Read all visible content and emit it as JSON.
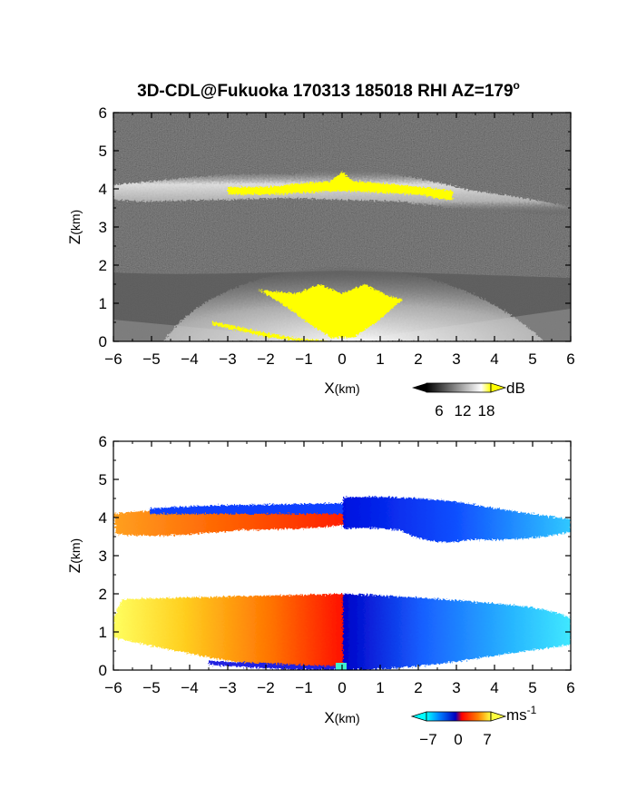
{
  "figure": {
    "title": "3D-CDL@Fukuoka 170313 185018 RHI AZ=179",
    "title_superscript": "o"
  },
  "chart_data": [
    {
      "type": "heatmap",
      "name": "backscatter",
      "xlabel_main": "X",
      "xlabel_unit": "(km)",
      "ylabel_main": "Z",
      "ylabel_unit": "(km)",
      "xlim": [
        -6,
        6
      ],
      "ylim": [
        0,
        6
      ],
      "x_ticks": [
        -6,
        -5,
        -4,
        -3,
        -2,
        -1,
        0,
        1,
        2,
        3,
        4,
        5,
        6
      ],
      "y_ticks": [
        0,
        1,
        2,
        3,
        4,
        5,
        6
      ],
      "colorscale": "grayscale",
      "colorbar": {
        "unit": "dB",
        "ticks": [
          "6",
          "12",
          "18"
        ],
        "colors": [
          "#000000",
          "#ffffff",
          "#ffff00"
        ],
        "extend": "both"
      },
      "layers": [
        {
          "feature": "cloud layer",
          "z_km": [
            3.6,
            4.4
          ],
          "x_km": [
            -6,
            6
          ]
        },
        {
          "feature": "saturated echo (>=18 dB)",
          "z_km": [
            3.6,
            4.5
          ],
          "x_km": [
            -3,
            3
          ]
        },
        {
          "feature": "boundary-layer scattering",
          "z_km": [
            0,
            1.8
          ],
          "x_km": [
            -6,
            6
          ]
        },
        {
          "feature": "saturated near-range echo",
          "z_km": [
            0,
            1.4
          ],
          "x_km": [
            -2.2,
            1.6
          ]
        }
      ]
    },
    {
      "type": "heatmap",
      "name": "doppler_velocity",
      "xlabel_main": "X",
      "xlabel_unit": "(km)",
      "ylabel_main": "Z",
      "ylabel_unit": "(km)",
      "xlim": [
        -6,
        6
      ],
      "ylim": [
        0,
        6
      ],
      "x_ticks": [
        -6,
        -5,
        -4,
        -3,
        -2,
        -1,
        0,
        1,
        2,
        3,
        4,
        5,
        6
      ],
      "y_ticks": [
        0,
        1,
        2,
        3,
        4,
        5,
        6
      ],
      "colorscale": "diverging blue-red-yellow",
      "colorbar": {
        "unit_main": "ms",
        "unit_exp": "-1",
        "ticks": [
          "−7",
          "0",
          "7"
        ],
        "colors": [
          "#00ffff",
          "#0060ff",
          "#0000d0",
          "#ff0000",
          "#ff8000",
          "#ffff40"
        ],
        "extend": "both"
      },
      "layers": [
        {
          "feature": "cloud layer, receding (positive)",
          "z_km": [
            3.6,
            4.4
          ],
          "x_km": [
            -6,
            0
          ],
          "sign": "positive"
        },
        {
          "feature": "cloud layer, approaching (negative)",
          "z_km": [
            3.3,
            4.6
          ],
          "x_km": [
            0,
            6
          ],
          "sign": "negative"
        },
        {
          "feature": "boundary layer, positive",
          "z_km": [
            0,
            1.9
          ],
          "x_km": [
            -6,
            0
          ],
          "sign": "positive"
        },
        {
          "feature": "boundary layer, negative",
          "z_km": [
            0,
            1.9
          ],
          "x_km": [
            0,
            6
          ],
          "sign": "negative"
        }
      ]
    }
  ]
}
